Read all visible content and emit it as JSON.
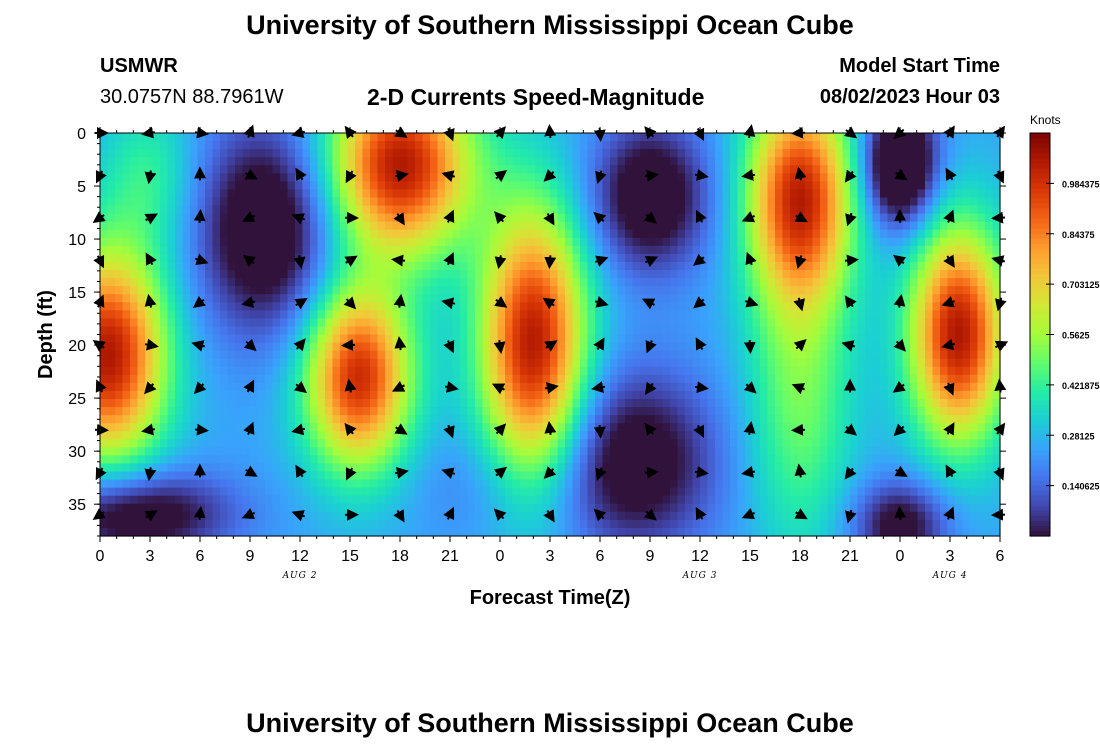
{
  "header": {
    "title": "University of Southern Mississippi Ocean Cube",
    "station_id": "USMWR",
    "coordinates": "30.0757N  88.7961W",
    "subtitle": "2-D Currents Speed-Magnitude",
    "model_start_label": "Model Start Time",
    "model_start_value": "08/02/2023 Hour 03"
  },
  "footer": {
    "title": "University of Southern Mississippi Ocean Cube"
  },
  "chart_data": {
    "type": "heatmap",
    "title": "2-D Currents Speed-Magnitude",
    "xlabel": "Forecast Time(Z)",
    "ylabel": "Depth (ft)",
    "x_tick_labels": [
      "0",
      "3",
      "6",
      "9",
      "12",
      "15",
      "18",
      "21",
      "0",
      "3",
      "6",
      "9",
      "12",
      "15",
      "18",
      "21",
      "0",
      "3",
      "6"
    ],
    "x_range_hours": [
      0,
      54
    ],
    "y_ticks": [
      0,
      5,
      10,
      15,
      20,
      25,
      30,
      35
    ],
    "y_range": [
      0,
      38
    ],
    "date_labels": [
      {
        "label": "AUG 2",
        "hour": 12
      },
      {
        "label": "AUG 3",
        "hour": 36
      },
      {
        "label": "AUG 4",
        "hour": 51
      }
    ],
    "colorbar": {
      "title": "Knots",
      "range": [
        0,
        1.125
      ],
      "tick_labels": [
        "0.984375",
        "0.84375",
        "0.703125",
        "0.5625",
        "0.421875",
        "0.28125",
        "0.140625"
      ],
      "tick_values": [
        0.984375,
        0.84375,
        0.703125,
        0.5625,
        0.421875,
        0.28125,
        0.140625
      ],
      "colors": [
        "#30123b",
        "#4145ab",
        "#4675ed",
        "#39a2fc",
        "#1bcfd4",
        "#24eca6",
        "#61fc6c",
        "#a4fc3b",
        "#d1e834",
        "#f3c63a",
        "#fe9b2d",
        "#f36315",
        "#d93806",
        "#b11901",
        "#7a0402"
      ]
    },
    "speed_blobs_knots": [
      {
        "hour": 0.5,
        "depth": 21,
        "peak": 1.05,
        "sx": 2.4,
        "sy": 7
      },
      {
        "hour": 3,
        "depth": 4,
        "peak": 0.42,
        "sx": 2,
        "sy": 5
      },
      {
        "hour": 10,
        "depth": 9,
        "peak": -0.12,
        "sx": 3,
        "sy": 7
      },
      {
        "hour": 18,
        "depth": 3,
        "peak": 1.05,
        "sx": 3,
        "sy": 6
      },
      {
        "hour": 15.5,
        "depth": 23,
        "peak": 1.0,
        "sx": 2.2,
        "sy": 6
      },
      {
        "hour": 2,
        "depth": 36,
        "peak": -0.1,
        "sx": 4,
        "sy": 3
      },
      {
        "hour": 26,
        "depth": 20,
        "peak": 1.05,
        "sx": 2.2,
        "sy": 9
      },
      {
        "hour": 23,
        "depth": 33,
        "peak": 0.18,
        "sx": 3,
        "sy": 4
      },
      {
        "hour": 33,
        "depth": 6,
        "peak": -0.1,
        "sx": 2.5,
        "sy": 5
      },
      {
        "hour": 32,
        "depth": 31,
        "peak": -0.08,
        "sx": 3.5,
        "sy": 6
      },
      {
        "hour": 42,
        "depth": 6,
        "peak": 1.0,
        "sx": 2.2,
        "sy": 7
      },
      {
        "hour": 42,
        "depth": 25,
        "peak": 0.5,
        "sx": 2.2,
        "sy": 10
      },
      {
        "hour": 48,
        "depth": 3,
        "peak": -0.25,
        "sx": 1.5,
        "sy": 4
      },
      {
        "hour": 51.5,
        "depth": 19,
        "peak": 1.05,
        "sx": 2,
        "sy": 7
      },
      {
        "hour": 48,
        "depth": 37,
        "peak": -0.05,
        "sx": 2,
        "sy": 3
      }
    ],
    "vector_columns_hours": [
      0,
      3,
      6,
      9,
      12,
      15,
      18,
      21,
      24,
      27,
      30,
      33,
      36,
      39,
      42,
      45,
      48,
      51,
      54
    ],
    "vector_rows_depth_ft": [
      0,
      4,
      8,
      12,
      16,
      20,
      24,
      28,
      32,
      36
    ]
  }
}
